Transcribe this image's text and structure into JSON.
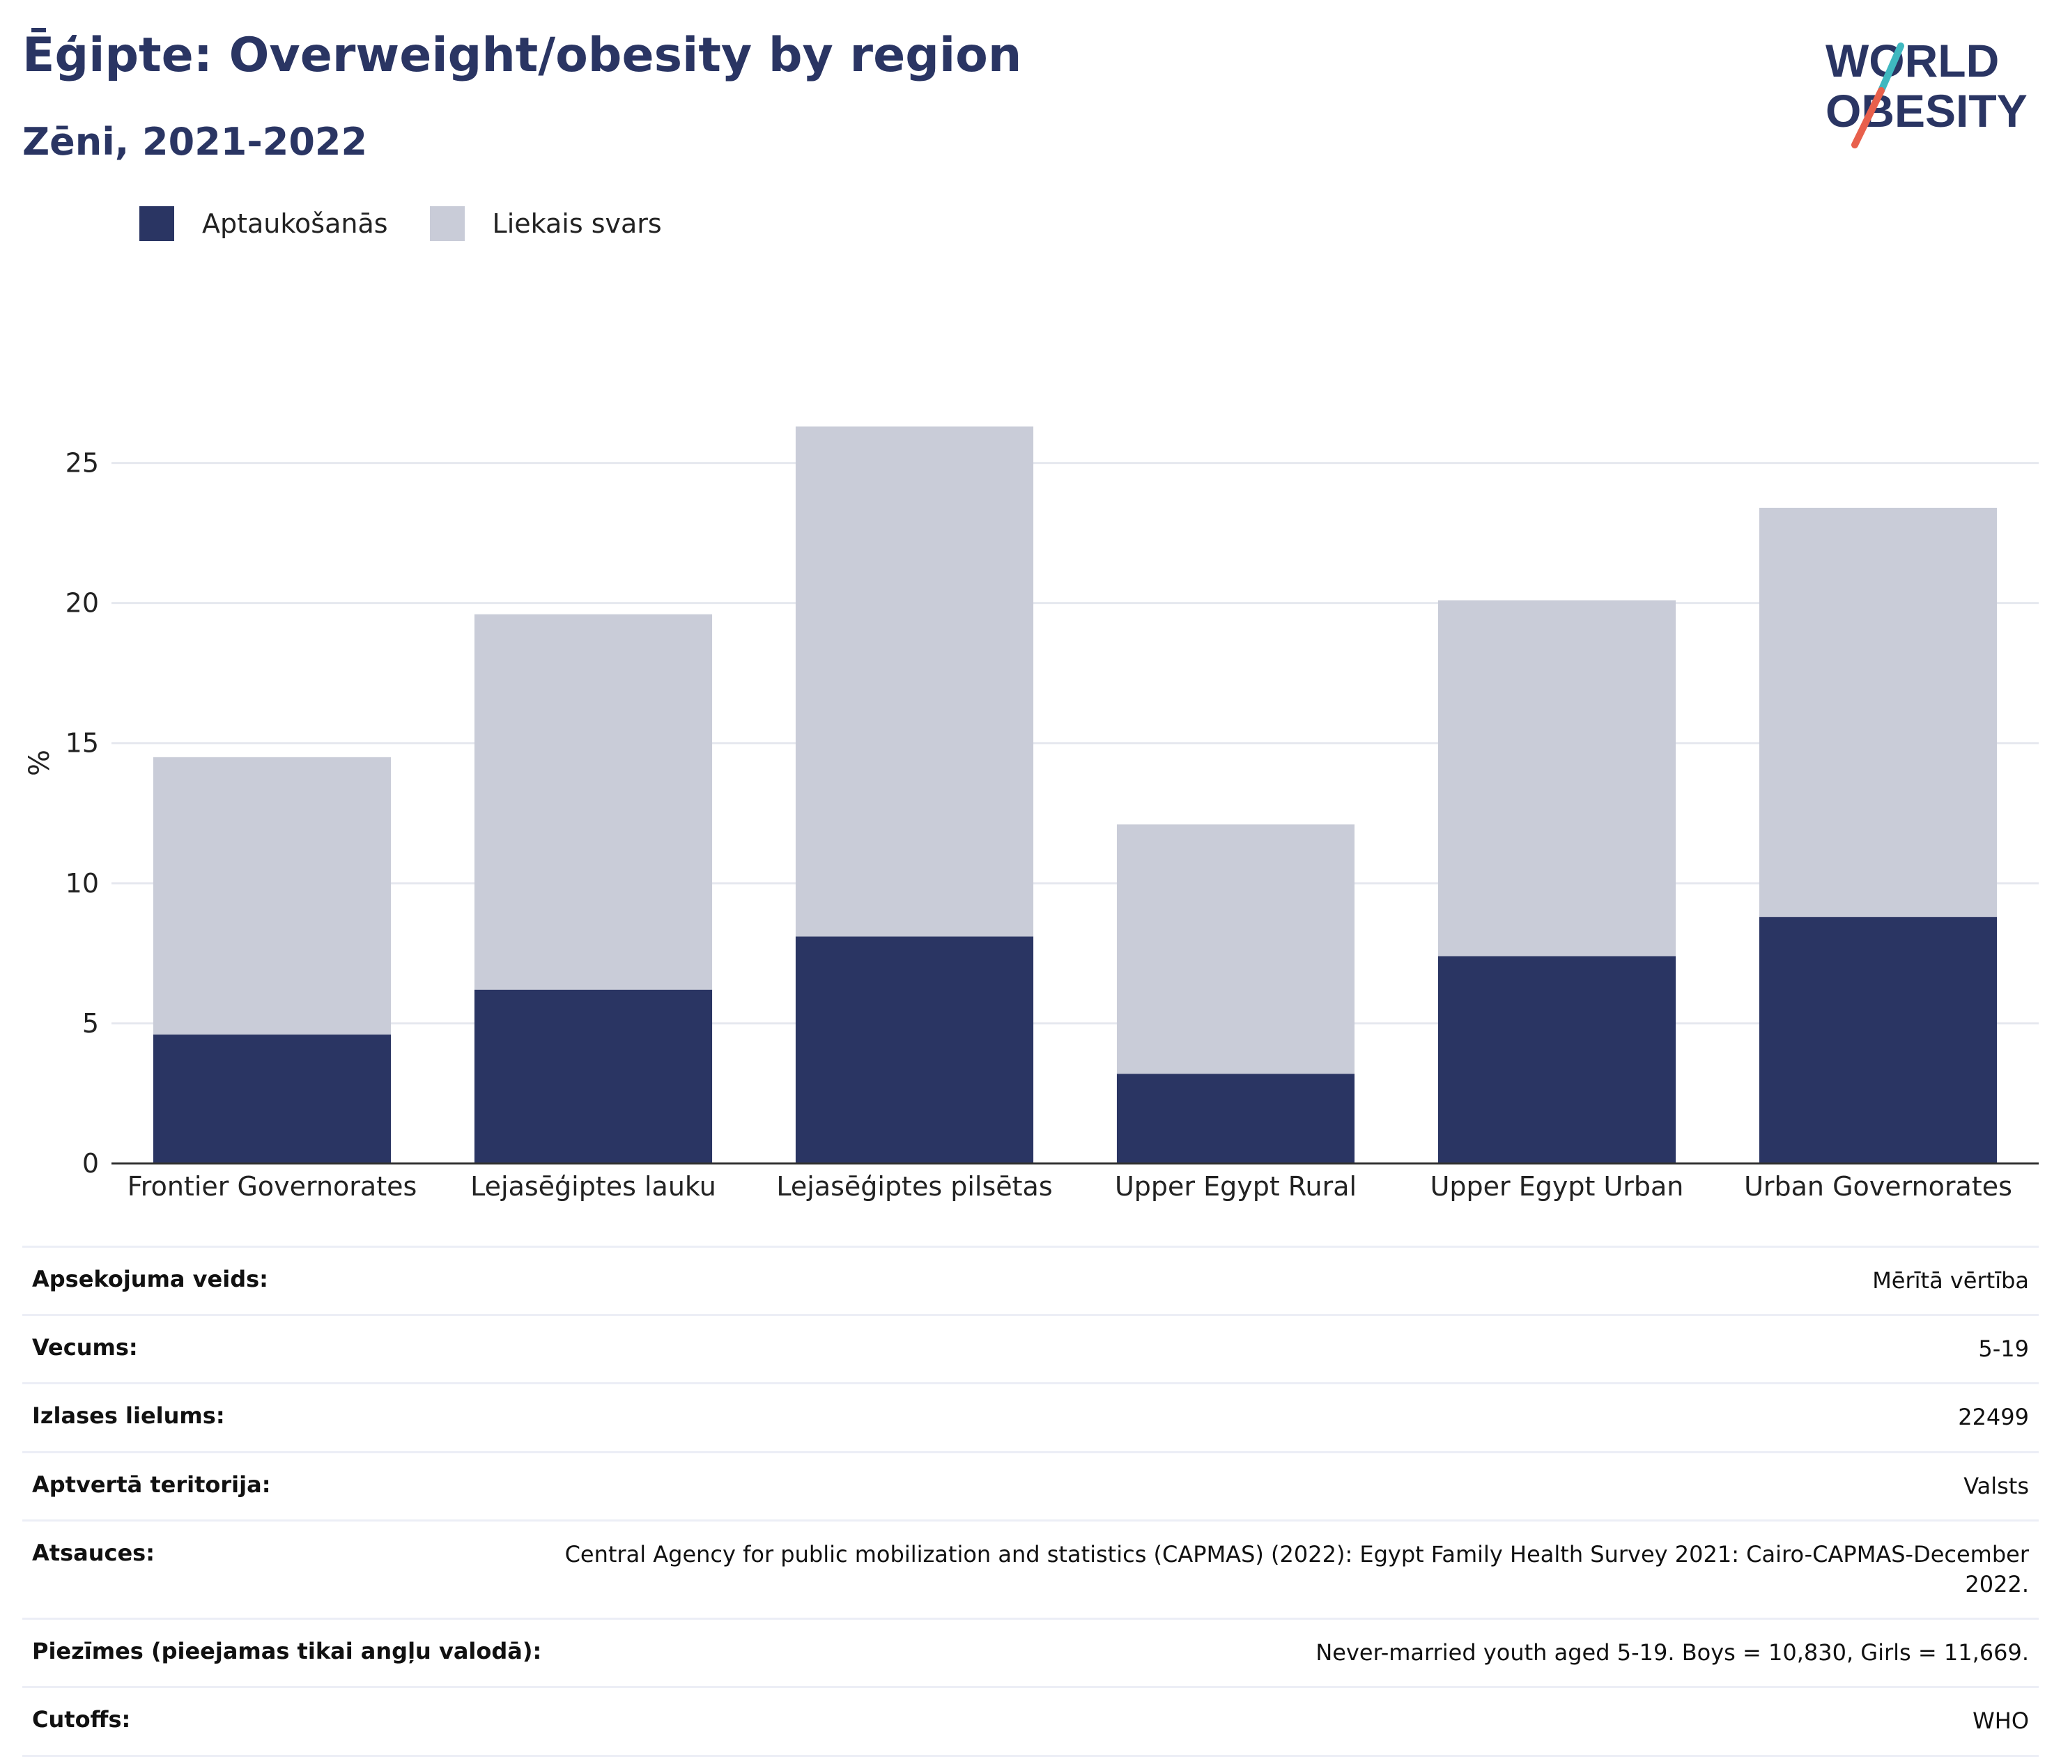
{
  "header": {
    "title": "Ēģipte: Overweight/obesity by region",
    "subtitle": "Zēni, 2021-2022"
  },
  "logo": {
    "line1": "WORLD",
    "line2": "OBESITY",
    "accent_teal": "#3fb8c0",
    "accent_red": "#e8604c"
  },
  "legend": [
    {
      "label": "Aptaukošanās",
      "color": "#2a3563"
    },
    {
      "label": "Liekais svars",
      "color": "#c9ccd8"
    }
  ],
  "chart_data": {
    "type": "bar",
    "stacked": true,
    "categories": [
      "Frontier Governorates",
      "Lejasēģiptes lauku",
      "Lejasēģiptes pilsētas",
      "Upper Egypt Rural",
      "Upper Egypt Urban",
      "Urban Governorates"
    ],
    "series": [
      {
        "name": "Aptaukošanās",
        "color": "#2a3563",
        "values": [
          4.6,
          6.2,
          8.1,
          3.2,
          7.4,
          8.8
        ]
      },
      {
        "name": "Liekais svars",
        "color": "#c9ccd8",
        "values": [
          9.9,
          13.4,
          18.2,
          8.9,
          12.7,
          14.6
        ]
      }
    ],
    "ylabel": "%",
    "ylim": [
      0,
      27.6
    ],
    "yticks": [
      0,
      5,
      10,
      15,
      20,
      25
    ],
    "grid": true,
    "legend_position": "top-left"
  },
  "meta": [
    {
      "label": "Apsekojuma veids:",
      "value": "Mērītā vērtība"
    },
    {
      "label": "Vecums:",
      "value": "5-19"
    },
    {
      "label": "Izlases lielums:",
      "value": "22499"
    },
    {
      "label": "Aptvertā teritorija:",
      "value": "Valsts"
    },
    {
      "label": "Atsauces:",
      "value": "Central Agency for public mobilization and statistics (CAPMAS) (2022): Egypt Family Health Survey 2021: Cairo-CAPMAS-December 2022."
    },
    {
      "label": "Piezīmes (pieejamas tikai angļu valodā):",
      "value": "Never-married youth aged 5-19. Boys = 10,830, Girls = 11,669."
    },
    {
      "label": "Cutoffs:",
      "value": "WHO"
    }
  ]
}
